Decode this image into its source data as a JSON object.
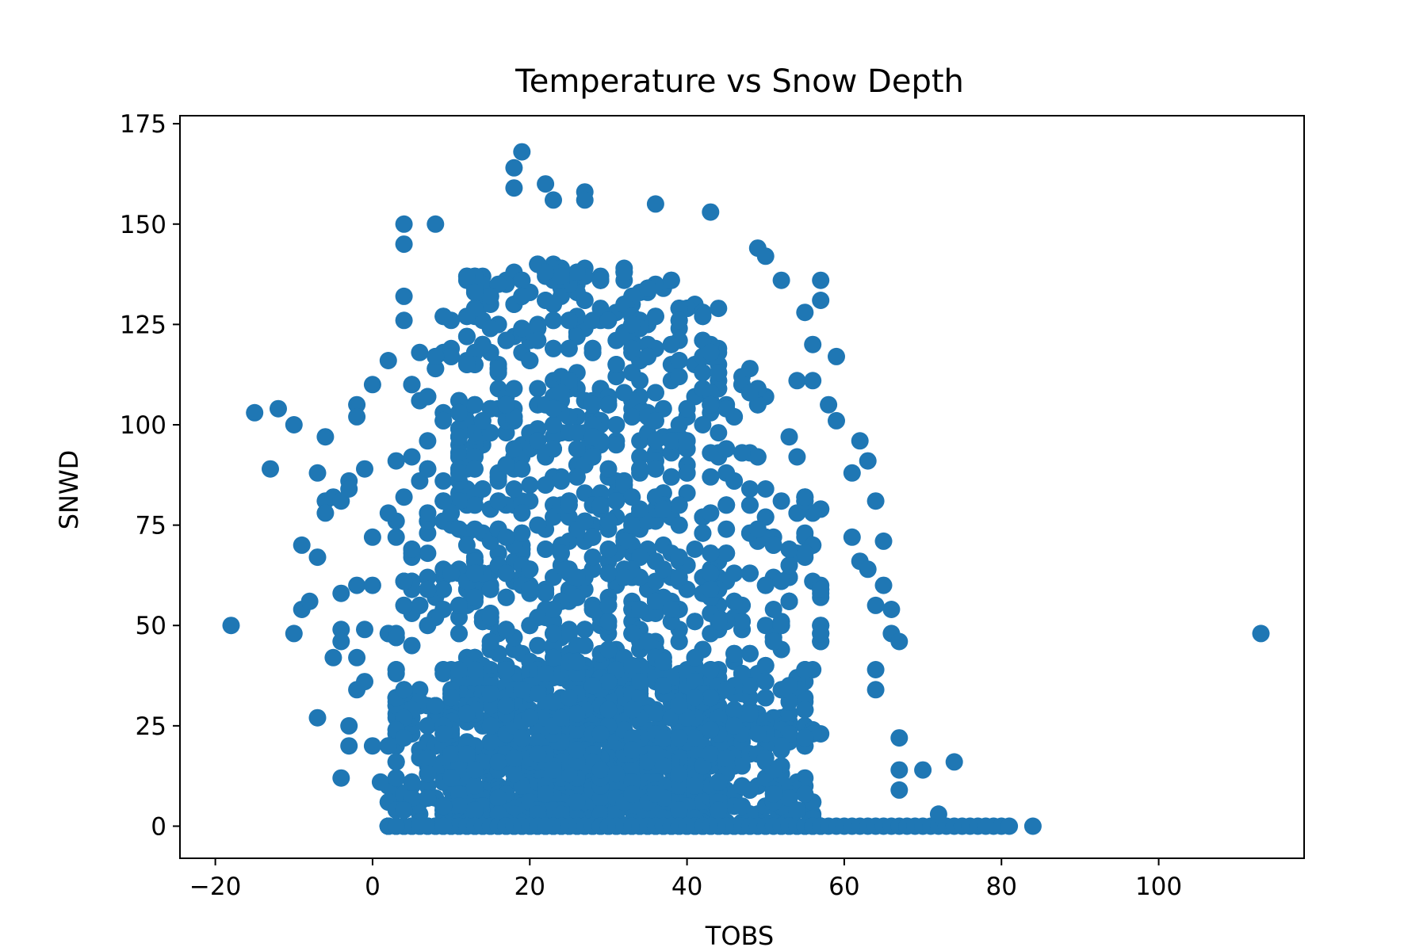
{
  "chart_data": {
    "type": "scatter",
    "title": "Temperature vs Snow Depth",
    "xlabel": "TOBS",
    "ylabel": "SNWD",
    "xlim": [
      -24.5,
      118.5
    ],
    "ylim": [
      -8,
      177
    ],
    "xticks": [
      -20,
      0,
      20,
      40,
      60,
      80,
      100
    ],
    "yticks": [
      0,
      25,
      50,
      75,
      100,
      125,
      150,
      175
    ],
    "grid": false,
    "legend": null,
    "color": "#1f77b4",
    "outliers": [
      {
        "x": -18,
        "y": 50
      },
      {
        "x": -15,
        "y": 103
      },
      {
        "x": -12,
        "y": 104
      },
      {
        "x": -13,
        "y": 89
      },
      {
        "x": -10,
        "y": 100
      },
      {
        "x": -10,
        "y": 48
      },
      {
        "x": -9,
        "y": 70
      },
      {
        "x": -9,
        "y": 54
      },
      {
        "x": -8,
        "y": 56
      },
      {
        "x": -7,
        "y": 88
      },
      {
        "x": -7,
        "y": 67
      },
      {
        "x": -7,
        "y": 27
      },
      {
        "x": -6,
        "y": 97
      },
      {
        "x": -6,
        "y": 81
      },
      {
        "x": -6,
        "y": 78
      },
      {
        "x": -5,
        "y": 82
      },
      {
        "x": -5,
        "y": 42
      },
      {
        "x": -4,
        "y": 81
      },
      {
        "x": -4,
        "y": 58
      },
      {
        "x": -4,
        "y": 49
      },
      {
        "x": -4,
        "y": 46
      },
      {
        "x": -4,
        "y": 12
      },
      {
        "x": -3,
        "y": 86
      },
      {
        "x": -3,
        "y": 84
      },
      {
        "x": -3,
        "y": 25
      },
      {
        "x": -3,
        "y": 20
      },
      {
        "x": -2,
        "y": 105
      },
      {
        "x": -2,
        "y": 102
      },
      {
        "x": -2,
        "y": 60
      },
      {
        "x": -2,
        "y": 42
      },
      {
        "x": -2,
        "y": 34
      },
      {
        "x": -1,
        "y": 89
      },
      {
        "x": -1,
        "y": 49
      },
      {
        "x": -1,
        "y": 36
      },
      {
        "x": 0,
        "y": 110
      },
      {
        "x": 0,
        "y": 72
      },
      {
        "x": 0,
        "y": 60
      },
      {
        "x": 0,
        "y": 20
      },
      {
        "x": 1,
        "y": 11
      },
      {
        "x": 2,
        "y": 116
      },
      {
        "x": 3,
        "y": 4
      },
      {
        "x": 4,
        "y": 150
      },
      {
        "x": 4,
        "y": 145
      },
      {
        "x": 4,
        "y": 132
      },
      {
        "x": 4,
        "y": 126
      },
      {
        "x": 4,
        "y": 4
      },
      {
        "x": 8,
        "y": 150
      },
      {
        "x": 9,
        "y": 0
      },
      {
        "x": 19,
        "y": 168
      },
      {
        "x": 18,
        "y": 164
      },
      {
        "x": 18,
        "y": 159
      },
      {
        "x": 22,
        "y": 160
      },
      {
        "x": 23,
        "y": 156
      },
      {
        "x": 27,
        "y": 158
      },
      {
        "x": 27,
        "y": 156
      },
      {
        "x": 36,
        "y": 155
      },
      {
        "x": 43,
        "y": 153
      },
      {
        "x": 49,
        "y": 144
      },
      {
        "x": 50,
        "y": 142
      },
      {
        "x": 52,
        "y": 136
      },
      {
        "x": 57,
        "y": 136
      },
      {
        "x": 57,
        "y": 131
      },
      {
        "x": 55,
        "y": 128
      },
      {
        "x": 56,
        "y": 120
      },
      {
        "x": 59,
        "y": 117
      },
      {
        "x": 54,
        "y": 111
      },
      {
        "x": 56,
        "y": 111
      },
      {
        "x": 58,
        "y": 105
      },
      {
        "x": 59,
        "y": 101
      },
      {
        "x": 62,
        "y": 96
      },
      {
        "x": 63,
        "y": 91
      },
      {
        "x": 61,
        "y": 88
      },
      {
        "x": 64,
        "y": 81
      },
      {
        "x": 61,
        "y": 72
      },
      {
        "x": 65,
        "y": 71
      },
      {
        "x": 62,
        "y": 66
      },
      {
        "x": 63,
        "y": 64
      },
      {
        "x": 65,
        "y": 60
      },
      {
        "x": 66,
        "y": 54
      },
      {
        "x": 64,
        "y": 55
      },
      {
        "x": 66,
        "y": 48
      },
      {
        "x": 67,
        "y": 46
      },
      {
        "x": 64,
        "y": 39
      },
      {
        "x": 64,
        "y": 34
      },
      {
        "x": 67,
        "y": 22
      },
      {
        "x": 67,
        "y": 14
      },
      {
        "x": 70,
        "y": 14
      },
      {
        "x": 74,
        "y": 16
      },
      {
        "x": 67,
        "y": 9
      },
      {
        "x": 72,
        "y": 3
      },
      {
        "x": 84,
        "y": 0
      },
      {
        "x": 113,
        "y": 48
      }
    ],
    "dense_region_note": "dense mass of points TOBS 5–57, SNWD 0–140"
  }
}
